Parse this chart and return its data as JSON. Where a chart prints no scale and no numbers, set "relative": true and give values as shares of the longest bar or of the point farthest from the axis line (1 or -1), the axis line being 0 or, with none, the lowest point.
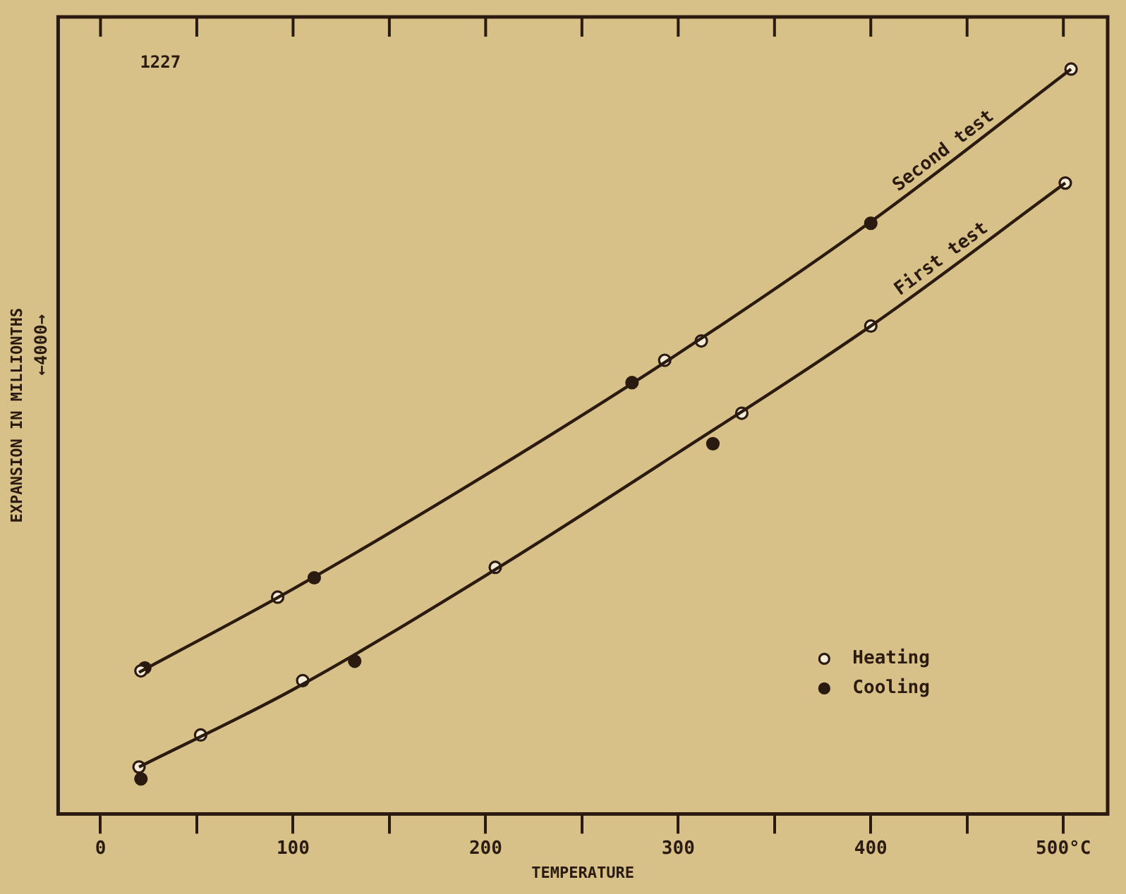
{
  "chart_data": {
    "type": "line",
    "xlabel": "TEMPERATURE",
    "ylabel": "EXPANSION IN MILLIONTHS",
    "relative": true,
    "grid": false,
    "legend": "bottom right",
    "xlim": [
      -22,
      523
    ],
    "xticks": [
      0,
      {
        "value": 50,
        "label": null
      },
      100,
      {
        "value": 150,
        "label": null
      },
      200,
      {
        "value": 250,
        "label": null
      },
      300,
      {
        "value": 350,
        "label": null
      },
      400,
      {
        "value": 450,
        "label": null
      },
      {
        "value": 500,
        "label": "500°C"
      }
    ],
    "annotations": [
      "1227",
      "←4000→"
    ],
    "series": [
      {
        "name": "Second test",
        "color": "#2a1a10",
        "marker": "none",
        "x": [
          20,
          100,
          200,
          300,
          400,
          504
        ],
        "values": [
          0.19,
          0.302,
          0.455,
          0.618,
          0.795,
          1.0
        ]
      },
      {
        "name": "First test",
        "color": "#2a1a10",
        "marker": "none",
        "x": [
          20,
          100,
          200,
          300,
          400,
          501
        ],
        "values": [
          0.063,
          0.167,
          0.32,
          0.485,
          0.655,
          0.847
        ]
      },
      {
        "name": "Heating",
        "type": "scatter",
        "color": "#2a1a10",
        "marker": "circle",
        "x": [
          20,
          52,
          105,
          205,
          333,
          400,
          501,
          21,
          92,
          293,
          312,
          504
        ],
        "values": [
          0.063,
          0.106,
          0.179,
          0.331,
          0.538,
          0.655,
          0.847,
          0.192,
          0.291,
          0.609,
          0.635,
          1.0
        ]
      },
      {
        "name": "Cooling",
        "type": "scatter",
        "color": "#2a1a10",
        "marker": "circle",
        "x": [
          21,
          132,
          318,
          23,
          111,
          276,
          400
        ],
        "values": [
          0.047,
          0.205,
          0.497,
          0.196,
          0.317,
          0.579,
          0.793
        ]
      }
    ]
  }
}
